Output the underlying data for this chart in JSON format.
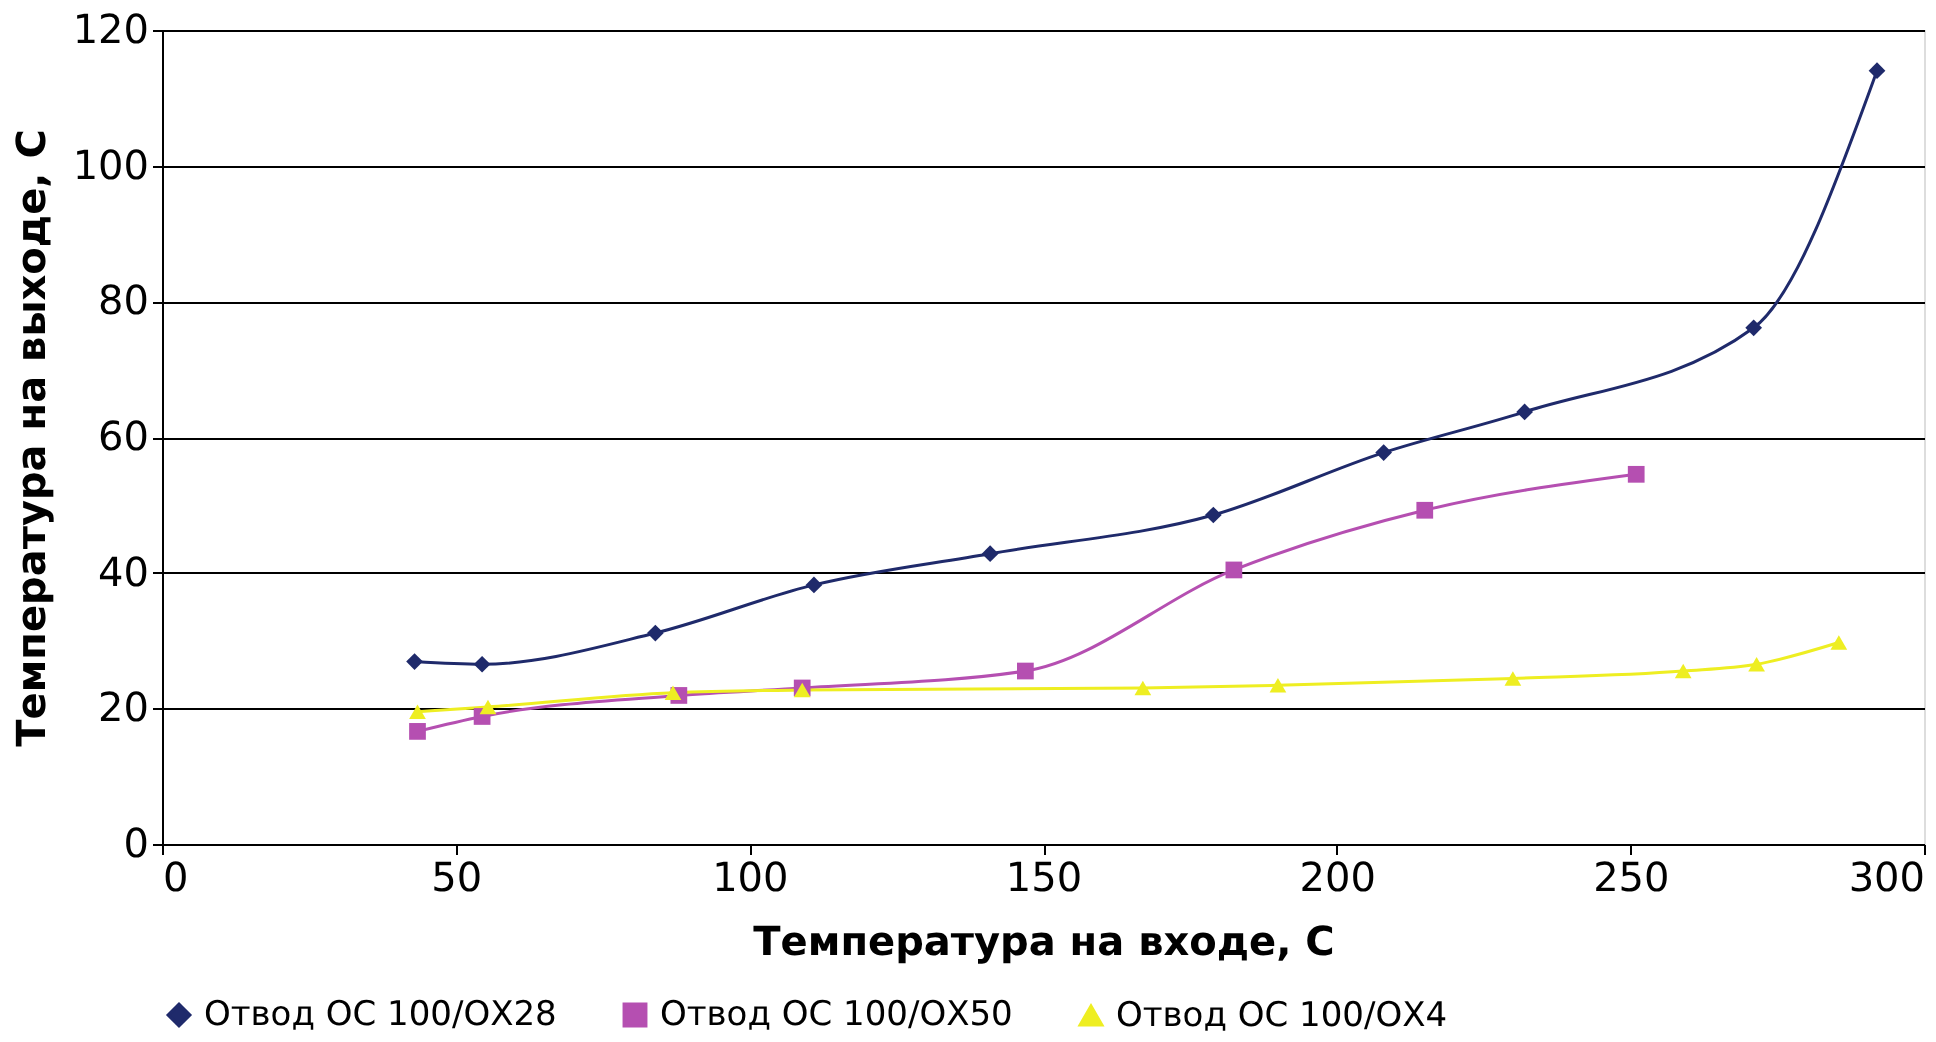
{
  "chart_data": {
    "type": "line",
    "xlabel": "Температура на входе, С",
    "ylabel": "Температура на выходе, С",
    "xlim": [
      0,
      300
    ],
    "xticks": [
      0,
      50,
      100,
      150,
      200,
      250,
      300
    ],
    "ylim": [
      0,
      120
    ],
    "yticks": [
      0,
      20,
      40,
      60,
      80,
      100,
      120
    ],
    "grid": "y",
    "legend": "bottom",
    "line_style": "solid",
    "series": [
      {
        "name": "Отвод ОС 100/ОХ28",
        "color": "#1f2a6b",
        "marker": "diamond",
        "x": [
          43,
          54.5,
          84,
          111,
          141,
          179,
          208,
          232,
          271,
          292
        ],
        "values": [
          26.9,
          26.5,
          31.1,
          38.2,
          42.8,
          48.5,
          57.7,
          63.7,
          76.1,
          114
        ]
      },
      {
        "name": "Отвод ОС 100/ОХ50",
        "color": "#b54fb1",
        "marker": "square",
        "x": [
          43.5,
          54.5,
          88,
          109,
          147,
          182.5,
          215,
          251
        ],
        "values": [
          16.6,
          18.8,
          21.9,
          23,
          25.5,
          40.4,
          49.2,
          54.5
        ]
      },
      {
        "name": "Отвод ОС 100/ОХ4",
        "color": "#eeee22",
        "marker": "triangle",
        "x": [
          43.5,
          55.5,
          87,
          109,
          167,
          190,
          230,
          259,
          271.5,
          285.5
        ],
        "values": [
          19.5,
          20.2,
          22.3,
          22.7,
          23,
          23.4,
          24.4,
          25.5,
          26.5,
          29.7
        ]
      }
    ]
  }
}
